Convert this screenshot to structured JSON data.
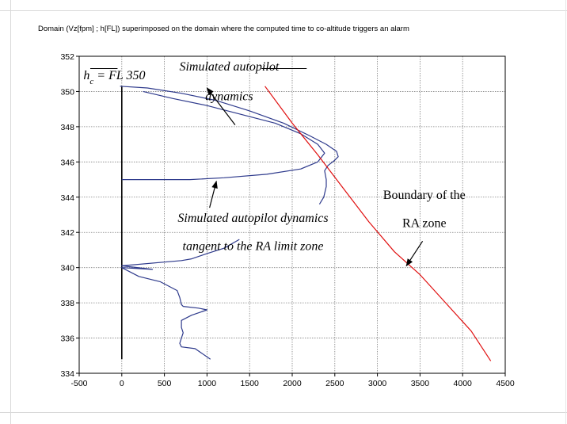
{
  "chart_data": {
    "type": "line",
    "title": "Domain (Vz[fpm] ; h[FL]) superimposed on the domain where the computed time to co-altitude triggers an alarm",
    "xlabel": "",
    "ylabel": "",
    "xlim": [
      -500,
      4500
    ],
    "ylim": [
      334,
      352
    ],
    "xticks": [
      "-500",
      "0",
      "500",
      "1000",
      "1500",
      "2000",
      "2500",
      "3000",
      "3500",
      "4000",
      "4500"
    ],
    "yticks": [
      "334",
      "336",
      "338",
      "340",
      "342",
      "344",
      "346",
      "348",
      "350",
      "352"
    ],
    "grid": true,
    "legend": "none",
    "colors": {
      "trajectory": "#2e3a8c",
      "boundary": "#e01010",
      "target": "#000000",
      "grid": "#808080"
    },
    "series": [
      {
        "role": "target-altitude",
        "x": [
          0,
          0
        ],
        "y": [
          334.8,
          350.3
        ]
      },
      {
        "role": "trajectory-outer",
        "x": [
          -20,
          300,
          700,
          1100,
          1500,
          1900,
          2200,
          2400,
          2520,
          2540,
          2500,
          2420,
          2380,
          2400,
          2400,
          2370,
          2320
        ],
        "y": [
          350.3,
          350.2,
          349.9,
          349.5,
          348.9,
          348.2,
          347.5,
          347.0,
          346.6,
          346.3,
          346.1,
          345.8,
          345.5,
          345.0,
          344.6,
          344.0,
          343.6
        ]
      },
      {
        "role": "trajectory-inner",
        "x": [
          250,
          600,
          1000,
          1400,
          1800,
          2100,
          2300,
          2380,
          2300,
          2100,
          1700,
          1200,
          800,
          400,
          0
        ],
        "y": [
          350.0,
          349.6,
          349.2,
          348.7,
          348.2,
          347.6,
          347.0,
          346.5,
          346.0,
          345.6,
          345.3,
          345.1,
          345.0,
          345.0,
          345.0
        ]
      },
      {
        "role": "trajectory-low",
        "x": [
          1380,
          1200,
          1000,
          820,
          700,
          0,
          360,
          0,
          200,
          450,
          650,
          680,
          700,
          720,
          900,
          1000,
          820,
          700,
          700,
          720,
          700,
          680,
          700,
          860,
          1040
        ],
        "y": [
          341.6,
          341.1,
          340.8,
          340.5,
          340.4,
          340.1,
          339.9,
          340.0,
          339.5,
          339.2,
          338.7,
          338.3,
          337.9,
          337.8,
          337.7,
          337.6,
          337.3,
          337.0,
          336.6,
          336.3,
          336.0,
          335.7,
          335.5,
          335.4,
          334.8
        ]
      },
      {
        "role": "ra-zone-boundary",
        "x": [
          1680,
          2000,
          2300,
          2600,
          2900,
          3200,
          3500,
          3800,
          4100,
          4330
        ],
        "y": [
          350.3,
          348.2,
          346.4,
          344.5,
          342.6,
          340.9,
          339.6,
          338.0,
          336.4,
          334.7
        ]
      }
    ],
    "annotations": {
      "target_label_main": "h",
      "target_label_sub": "c",
      "target_label_rest": " = FL 350",
      "sim_line1": "Simulated autopilot",
      "sim_line2": "dynamics",
      "tangent_line1": "Simulated autopilot dynamics",
      "tangent_line2": "tangent to the RA limit zone",
      "boundary_line1": "Boundary of the",
      "boundary_line2": "RA zone"
    }
  }
}
